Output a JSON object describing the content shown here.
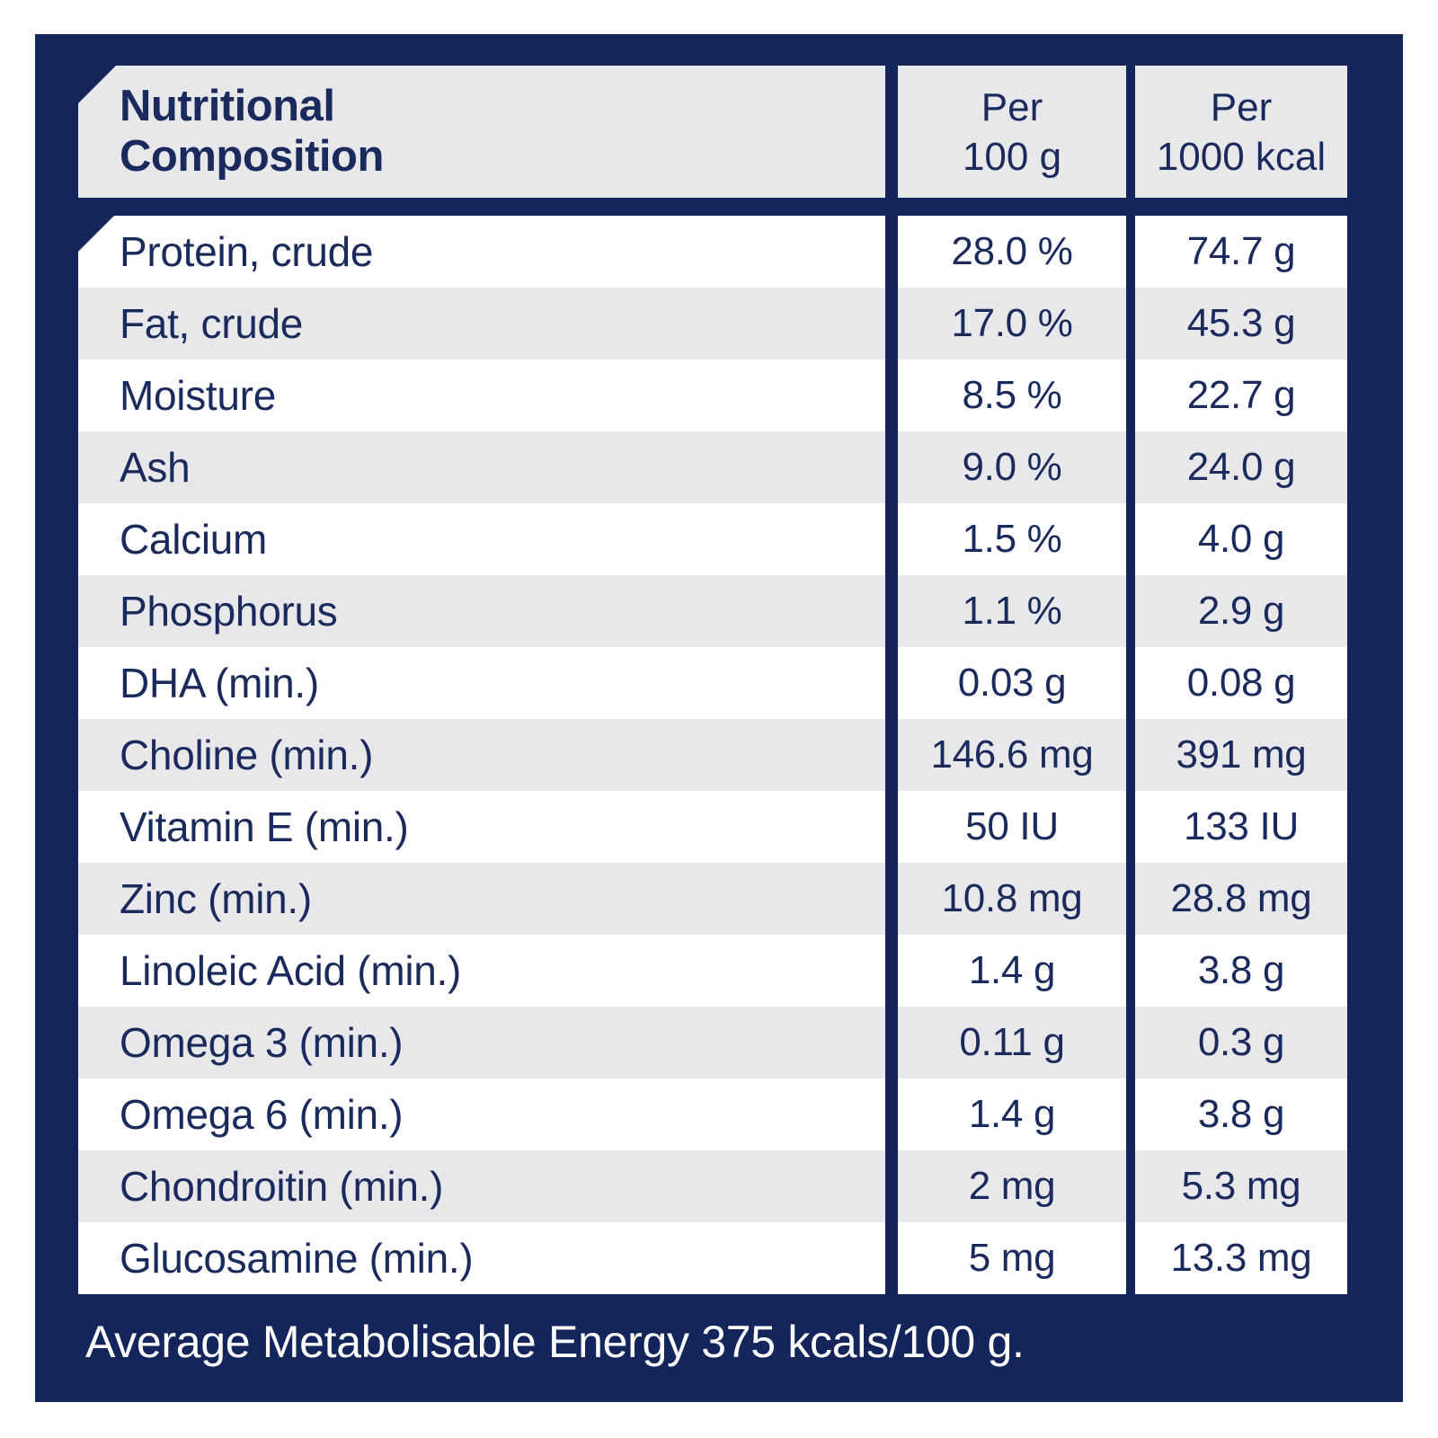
{
  "colors": {
    "panel_navy": "#14255B",
    "row_gray": "#E8E8EB",
    "row_white": "#FFFFFF",
    "text_navy": "#1B2A5C",
    "footer_text": "#FFFFFF"
  },
  "table": {
    "header": {
      "title": "Nutritional\nComposition",
      "per_100g": "Per\n100 g",
      "per_1000kcal": "Per\n1000 kcal"
    },
    "rows": [
      {
        "label": "Protein, crude",
        "per_100g": "28.0 %",
        "per_1000kcal": "74.7 g"
      },
      {
        "label": "Fat, crude",
        "per_100g": "17.0 %",
        "per_1000kcal": "45.3 g"
      },
      {
        "label": "Moisture",
        "per_100g": "8.5 %",
        "per_1000kcal": "22.7 g"
      },
      {
        "label": "Ash",
        "per_100g": "9.0 %",
        "per_1000kcal": "24.0 g"
      },
      {
        "label": "Calcium",
        "per_100g": "1.5 %",
        "per_1000kcal": "4.0 g"
      },
      {
        "label": "Phosphorus",
        "per_100g": "1.1 %",
        "per_1000kcal": "2.9 g"
      },
      {
        "label": "DHA (min.)",
        "per_100g": "0.03 g",
        "per_1000kcal": "0.08 g"
      },
      {
        "label": "Choline (min.)",
        "per_100g": "146.6 mg",
        "per_1000kcal": "391 mg"
      },
      {
        "label": "Vitamin E (min.)",
        "per_100g": "50 IU",
        "per_1000kcal": "133 IU"
      },
      {
        "label": "Zinc (min.)",
        "per_100g": "10.8 mg",
        "per_1000kcal": "28.8 mg"
      },
      {
        "label": "Linoleic Acid (min.)",
        "per_100g": "1.4 g",
        "per_1000kcal": "3.8 g"
      },
      {
        "label": "Omega 3 (min.)",
        "per_100g": "0.11 g",
        "per_1000kcal": "0.3 g"
      },
      {
        "label": "Omega 6 (min.)",
        "per_100g": "1.4 g",
        "per_1000kcal": "3.8 g"
      },
      {
        "label": "Chondroitin (min.)",
        "per_100g": "2 mg",
        "per_1000kcal": "5.3 mg"
      },
      {
        "label": "Glucosamine (min.)",
        "per_100g": "5 mg",
        "per_1000kcal": "13.3 mg"
      }
    ],
    "footer": "Average Metabolisable Energy 375 kcals/100 g."
  }
}
